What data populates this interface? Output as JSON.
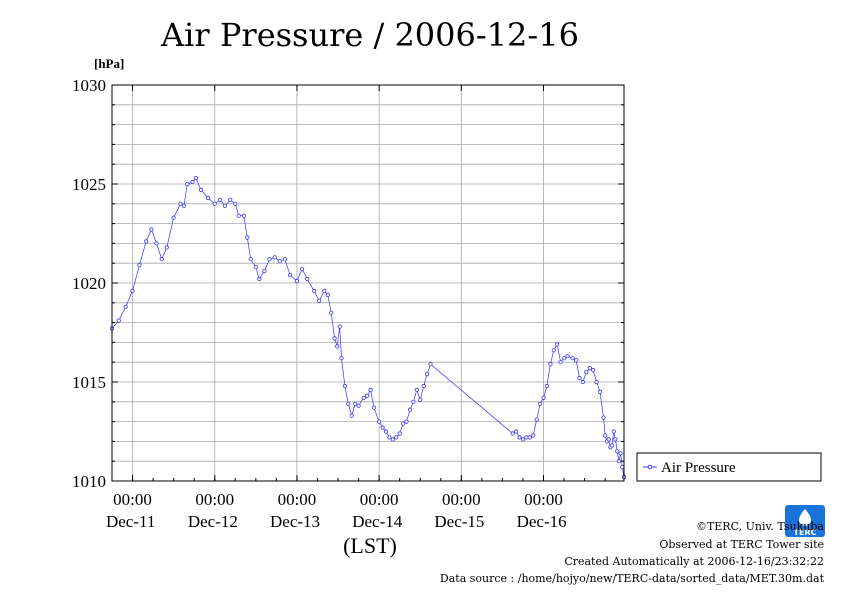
{
  "chart_data": {
    "type": "line",
    "title": "Air Pressure / 2006-12-16",
    "y_unit_label": "[hPa]",
    "xlabel": "(LST)",
    "ylim": [
      1010,
      1030
    ],
    "y_ticks": [
      1010,
      1015,
      1020,
      1025,
      1030
    ],
    "y_tick_labels": [
      "1010",
      "1015",
      "1020",
      "1025",
      "1030"
    ],
    "xlim": [
      "2006-12-10T18:00",
      "2006-12-16T23:30"
    ],
    "x_tick_times": [
      "2006-12-11T00:00",
      "2006-12-12T00:00",
      "2006-12-13T00:00",
      "2006-12-14T00:00",
      "2006-12-15T00:00",
      "2006-12-16T00:00"
    ],
    "x_tick_time_labels": [
      "00:00",
      "00:00",
      "00:00",
      "00:00",
      "00:00",
      "00:00"
    ],
    "x_day_labels": [
      "Dec-11",
      "Dec-12",
      "Dec-13",
      "Dec-14",
      "Dec-15",
      "Dec-16"
    ],
    "grid": true,
    "legend_position": "right",
    "series": [
      {
        "name": "Air Pressure",
        "color": "#3333ff",
        "marker": "circle",
        "points": [
          [
            "2006-12-10T18:00",
            1017.7
          ],
          [
            "2006-12-10T20:00",
            1018.1
          ],
          [
            "2006-12-10T22:00",
            1018.8
          ],
          [
            "2006-12-11T00:00",
            1019.6
          ],
          [
            "2006-12-11T02:00",
            1020.9
          ],
          [
            "2006-12-11T04:00",
            1022.1
          ],
          [
            "2006-12-11T05:30",
            1022.7
          ],
          [
            "2006-12-11T07:00",
            1022.0
          ],
          [
            "2006-12-11T08:30",
            1021.2
          ],
          [
            "2006-12-11T10:00",
            1021.8
          ],
          [
            "2006-12-11T12:00",
            1023.3
          ],
          [
            "2006-12-11T14:00",
            1024.0
          ],
          [
            "2006-12-11T15:00",
            1023.9
          ],
          [
            "2006-12-11T16:00",
            1025.0
          ],
          [
            "2006-12-11T17:30",
            1025.1
          ],
          [
            "2006-12-11T18:30",
            1025.3
          ],
          [
            "2006-12-11T20:00",
            1024.7
          ],
          [
            "2006-12-11T22:00",
            1024.3
          ],
          [
            "2006-12-12T00:00",
            1024.0
          ],
          [
            "2006-12-12T01:30",
            1024.2
          ],
          [
            "2006-12-12T03:00",
            1023.9
          ],
          [
            "2006-12-12T04:30",
            1024.2
          ],
          [
            "2006-12-12T06:00",
            1024.0
          ],
          [
            "2006-12-12T07:00",
            1023.4
          ],
          [
            "2006-12-12T08:30",
            1023.4
          ],
          [
            "2006-12-12T09:30",
            1022.3
          ],
          [
            "2006-12-12T10:30",
            1021.2
          ],
          [
            "2006-12-12T12:00",
            1020.8
          ],
          [
            "2006-12-12T13:00",
            1020.2
          ],
          [
            "2006-12-12T14:30",
            1020.6
          ],
          [
            "2006-12-12T16:00",
            1021.2
          ],
          [
            "2006-12-12T17:30",
            1021.3
          ],
          [
            "2006-12-12T19:00",
            1021.1
          ],
          [
            "2006-12-12T20:30",
            1021.2
          ],
          [
            "2006-12-12T22:00",
            1020.4
          ],
          [
            "2006-12-13T00:00",
            1020.1
          ],
          [
            "2006-12-13T01:30",
            1020.7
          ],
          [
            "2006-12-13T03:00",
            1020.2
          ],
          [
            "2006-12-13T05:00",
            1019.6
          ],
          [
            "2006-12-13T06:30",
            1019.1
          ],
          [
            "2006-12-13T08:00",
            1019.6
          ],
          [
            "2006-12-13T09:00",
            1019.4
          ],
          [
            "2006-12-13T10:00",
            1018.5
          ],
          [
            "2006-12-13T11:00",
            1017.2
          ],
          [
            "2006-12-13T11:45",
            1016.8
          ],
          [
            "2006-12-13T12:30",
            1017.8
          ],
          [
            "2006-12-13T13:00",
            1016.2
          ],
          [
            "2006-12-13T14:00",
            1014.8
          ],
          [
            "2006-12-13T15:00",
            1013.9
          ],
          [
            "2006-12-13T16:00",
            1013.3
          ],
          [
            "2006-12-13T17:00",
            1013.9
          ],
          [
            "2006-12-13T18:00",
            1013.8
          ],
          [
            "2006-12-13T19:30",
            1014.2
          ],
          [
            "2006-12-13T20:30",
            1014.3
          ],
          [
            "2006-12-13T21:30",
            1014.6
          ],
          [
            "2006-12-13T22:30",
            1013.7
          ],
          [
            "2006-12-14T00:00",
            1013.0
          ],
          [
            "2006-12-14T01:00",
            1012.7
          ],
          [
            "2006-12-14T02:00",
            1012.5
          ],
          [
            "2006-12-14T03:00",
            1012.2
          ],
          [
            "2006-12-14T04:00",
            1012.1
          ],
          [
            "2006-12-14T05:00",
            1012.2
          ],
          [
            "2006-12-14T06:00",
            1012.4
          ],
          [
            "2006-12-14T07:00",
            1012.9
          ],
          [
            "2006-12-14T08:00",
            1013.0
          ],
          [
            "2006-12-14T09:00",
            1013.6
          ],
          [
            "2006-12-14T10:00",
            1014.0
          ],
          [
            "2006-12-14T11:00",
            1014.6
          ],
          [
            "2006-12-14T12:00",
            1014.1
          ],
          [
            "2006-12-14T13:00",
            1014.8
          ],
          [
            "2006-12-14T14:00",
            1015.4
          ],
          [
            "2006-12-14T15:00",
            1015.9
          ],
          [
            "2006-12-15T15:00",
            1012.4
          ],
          [
            "2006-12-15T16:00",
            1012.5
          ],
          [
            "2006-12-15T17:00",
            1012.2
          ],
          [
            "2006-12-15T18:00",
            1012.1
          ],
          [
            "2006-12-15T19:00",
            1012.2
          ],
          [
            "2006-12-15T20:00",
            1012.2
          ],
          [
            "2006-12-15T21:00",
            1012.3
          ],
          [
            "2006-12-15T22:00",
            1013.1
          ],
          [
            "2006-12-15T23:00",
            1013.9
          ],
          [
            "2006-12-16T00:00",
            1014.2
          ],
          [
            "2006-12-16T01:00",
            1014.8
          ],
          [
            "2006-12-16T02:00",
            1015.9
          ],
          [
            "2006-12-16T03:00",
            1016.6
          ],
          [
            "2006-12-16T04:00",
            1016.9
          ],
          [
            "2006-12-16T05:00",
            1016.0
          ],
          [
            "2006-12-16T06:00",
            1016.2
          ],
          [
            "2006-12-16T07:00",
            1016.3
          ],
          [
            "2006-12-16T08:30",
            1016.2
          ],
          [
            "2006-12-16T09:30",
            1016.1
          ],
          [
            "2006-12-16T10:30",
            1015.2
          ],
          [
            "2006-12-16T11:30",
            1015.0
          ],
          [
            "2006-12-16T12:30",
            1015.5
          ],
          [
            "2006-12-16T13:30",
            1015.7
          ],
          [
            "2006-12-16T14:30",
            1015.6
          ],
          [
            "2006-12-16T15:30",
            1015.0
          ],
          [
            "2006-12-16T16:30",
            1014.5
          ],
          [
            "2006-12-16T17:30",
            1013.2
          ],
          [
            "2006-12-16T18:00",
            1012.3
          ],
          [
            "2006-12-16T18:30",
            1012.0
          ],
          [
            "2006-12-16T19:00",
            1012.1
          ],
          [
            "2006-12-16T19:30",
            1011.7
          ],
          [
            "2006-12-16T20:00",
            1011.8
          ],
          [
            "2006-12-16T20:30",
            1012.5
          ],
          [
            "2006-12-16T21:00",
            1012.1
          ],
          [
            "2006-12-16T21:30",
            1011.5
          ],
          [
            "2006-12-16T22:00",
            1011.0
          ],
          [
            "2006-12-16T22:30",
            1011.4
          ],
          [
            "2006-12-16T23:00",
            1010.7
          ],
          [
            "2006-12-16T23:30",
            1010.2
          ]
        ]
      }
    ]
  },
  "footer": {
    "copyright": "©TERC, Univ. Tsukuba",
    "observed": "Observed at TERC Tower site",
    "created": "Created Automatically at 2006-12-16/23:32:22",
    "source": "Data source : /home/hojyo/new/TERC-data/sorted_data/MET.30m.dat"
  },
  "logo": {
    "name": "terc-logo",
    "text": "TERC"
  }
}
